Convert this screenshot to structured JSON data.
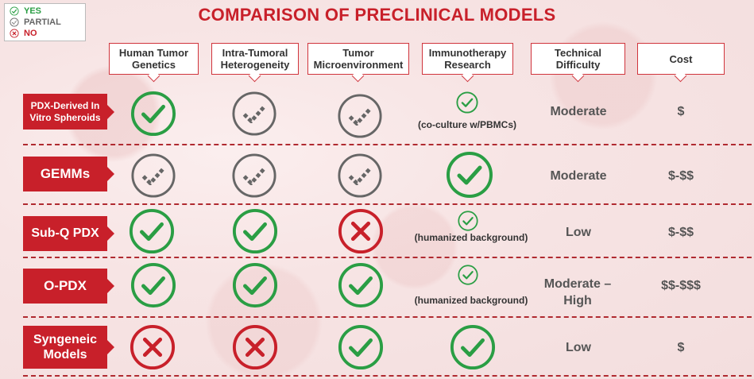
{
  "title": "COMPARISON OF PRECLINICAL MODELS",
  "legend": {
    "yes": "YES",
    "partial": "PARTIAL",
    "no": "NO"
  },
  "columns": {
    "genetics": "Human Tumor Genetics",
    "heterogeneity": "Intra-Tumoral Heterogeneity",
    "microenvironment": "Tumor Microenvironment",
    "immunotherapy": "Immunotherapy Research",
    "difficulty": "Technical Difficulty",
    "cost": "Cost"
  },
  "rows": [
    {
      "label": "PDX-Derived In Vitro Spheroids",
      "genetics": "yes",
      "heterogeneity": "partial",
      "microenvironment": "partial",
      "immunotherapy": "yes",
      "immunotherapy_note": "(co-culture w/PBMCs)",
      "difficulty": "Moderate",
      "cost": "$"
    },
    {
      "label": "GEMMs",
      "genetics": "partial",
      "heterogeneity": "partial",
      "microenvironment": "partial",
      "immunotherapy": "yes",
      "immunotherapy_note": "",
      "difficulty": "Moderate",
      "cost": "$-$$"
    },
    {
      "label": "Sub-Q PDX",
      "genetics": "yes",
      "heterogeneity": "yes",
      "microenvironment": "no",
      "immunotherapy": "yes",
      "immunotherapy_note": "(humanized background)",
      "difficulty": "Low",
      "cost": "$-$$"
    },
    {
      "label": "O-PDX",
      "genetics": "yes",
      "heterogeneity": "yes",
      "microenvironment": "yes",
      "immunotherapy": "yes",
      "immunotherapy_note": "(humanized background)",
      "difficulty": "Moderate – High",
      "cost": "$$-$$$"
    },
    {
      "label": "Syngeneic Models",
      "genetics": "no",
      "heterogeneity": "no",
      "microenvironment": "yes",
      "immunotherapy": "yes",
      "immunotherapy_note": "",
      "difficulty": "Low",
      "cost": "$"
    }
  ],
  "colors": {
    "yes": "#2a9e44",
    "partial": "#666666",
    "no": "#c8202a",
    "accent": "#c8202a"
  },
  "icons": {
    "yes": "check-icon",
    "partial": "partial-check-icon",
    "no": "cross-icon"
  }
}
